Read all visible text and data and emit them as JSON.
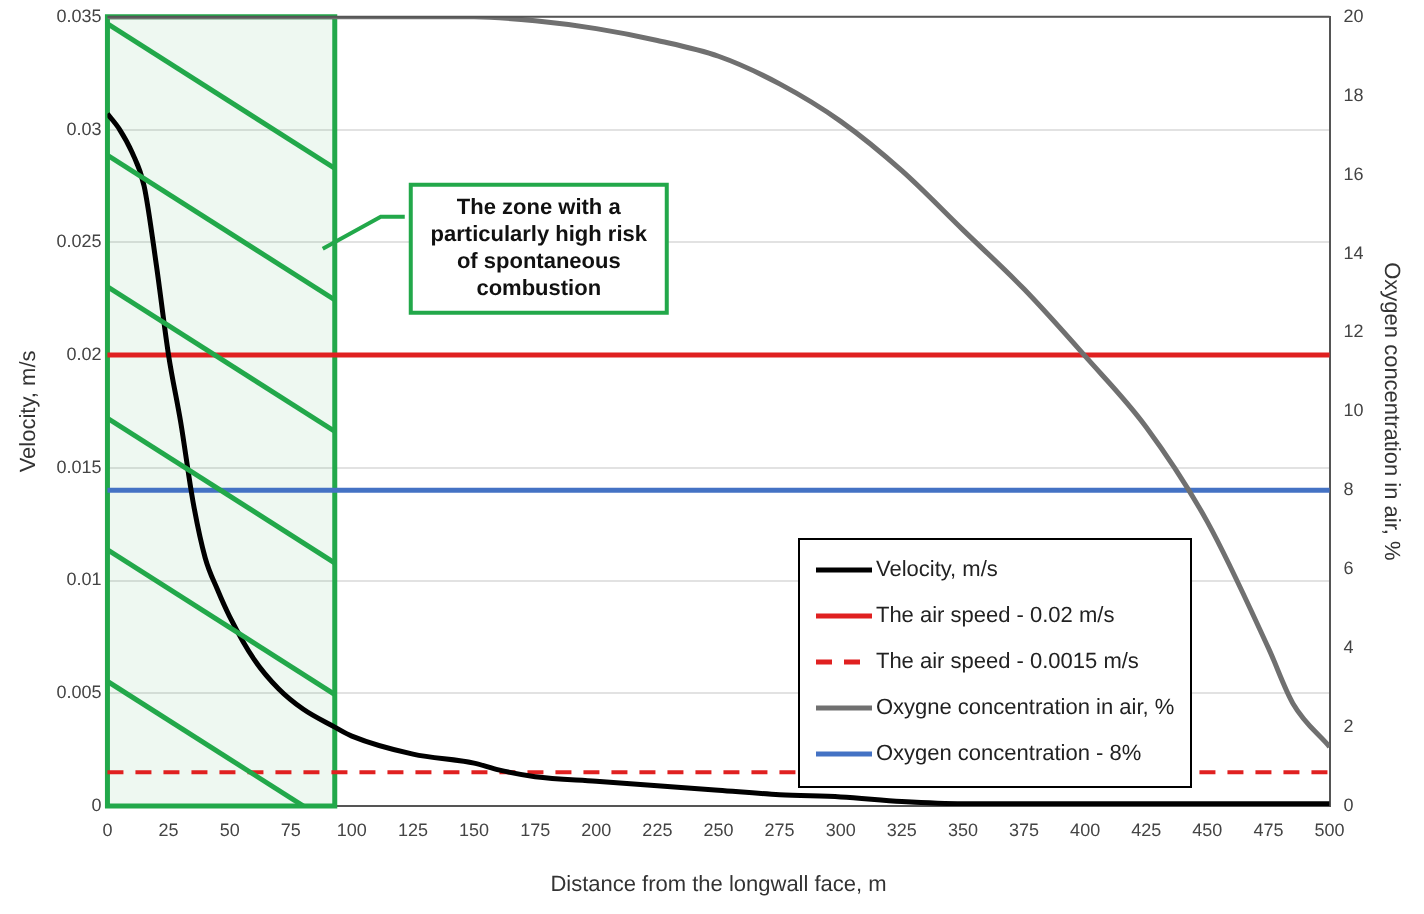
{
  "chart_data": {
    "type": "line",
    "xlabel": "Distance from the longwall face, m",
    "ylabel": "Velocity, m/s",
    "y2label": "Oxygen concentration in air, %",
    "xlim": [
      0,
      500
    ],
    "xticks": [
      0,
      25,
      50,
      75,
      100,
      125,
      150,
      175,
      200,
      225,
      250,
      275,
      300,
      325,
      350,
      375,
      400,
      425,
      450,
      475,
      500
    ],
    "ylim": [
      0,
      0.035
    ],
    "yticks": [
      0,
      0.005,
      0.01,
      0.015,
      0.02,
      0.025,
      0.03,
      0.035
    ],
    "y2lim": [
      0,
      20
    ],
    "y2ticks": [
      0,
      2,
      4,
      6,
      8,
      10,
      12,
      14,
      16,
      18,
      20
    ],
    "grid": "y",
    "legend": "bottom right",
    "marker": "none",
    "series": [
      {
        "name": "Velocity, m/s",
        "color": "#000000",
        "x": [
          0,
          5,
          10,
          15,
          20,
          25,
          30,
          35,
          40,
          45,
          50,
          60,
          70,
          80,
          93,
          100,
          125,
          150,
          160,
          175,
          200,
          225,
          250,
          275,
          300,
          325,
          350,
          400,
          450,
          500
        ],
        "values": [
          0.0307,
          0.03,
          0.029,
          0.0275,
          0.024,
          0.02,
          0.017,
          0.0135,
          0.011,
          0.0096,
          0.0084,
          0.0065,
          0.0052,
          0.0043,
          0.0035,
          0.0031,
          0.0023,
          0.0019,
          0.0016,
          0.0013,
          0.0011,
          0.0009,
          0.0007,
          0.0005,
          0.0004,
          0.0002,
          0.0001,
          0.0001,
          0.0001,
          0.0001
        ]
      },
      {
        "name": "Oxygne concentration in air, %",
        "color": "#707070",
        "axis": "y2",
        "x": [
          0,
          100,
          150,
          175,
          200,
          225,
          250,
          275,
          300,
          325,
          350,
          375,
          400,
          425,
          450,
          475,
          485,
          500
        ],
        "values": [
          20,
          20,
          20,
          19.9,
          19.7,
          19.4,
          19,
          18.3,
          17.35,
          16.1,
          14.6,
          13.1,
          11.4,
          9.6,
          7.2,
          4,
          2.6,
          1.5
        ]
      }
    ],
    "ref_lines": [
      {
        "axis": "y",
        "value": 0.02,
        "label": "The air speed - 0.02 m/s",
        "color": "#e02020",
        "line_style": "solid"
      },
      {
        "axis": "y",
        "value": 0.0015,
        "label": "The air speed - 0.0015 m/s",
        "color": "#e02020",
        "line_style": "dashed"
      },
      {
        "axis": "y2",
        "value": 8,
        "label": "Oxygen concentration - 8%",
        "color": "#4472c4",
        "line_style": "solid"
      }
    ],
    "bands": [
      {
        "axis": "x",
        "from": 0,
        "to": 93,
        "label": "The zone with a particularly high risk of spontaneous combustion",
        "color": "#22a84a"
      }
    ]
  }
}
